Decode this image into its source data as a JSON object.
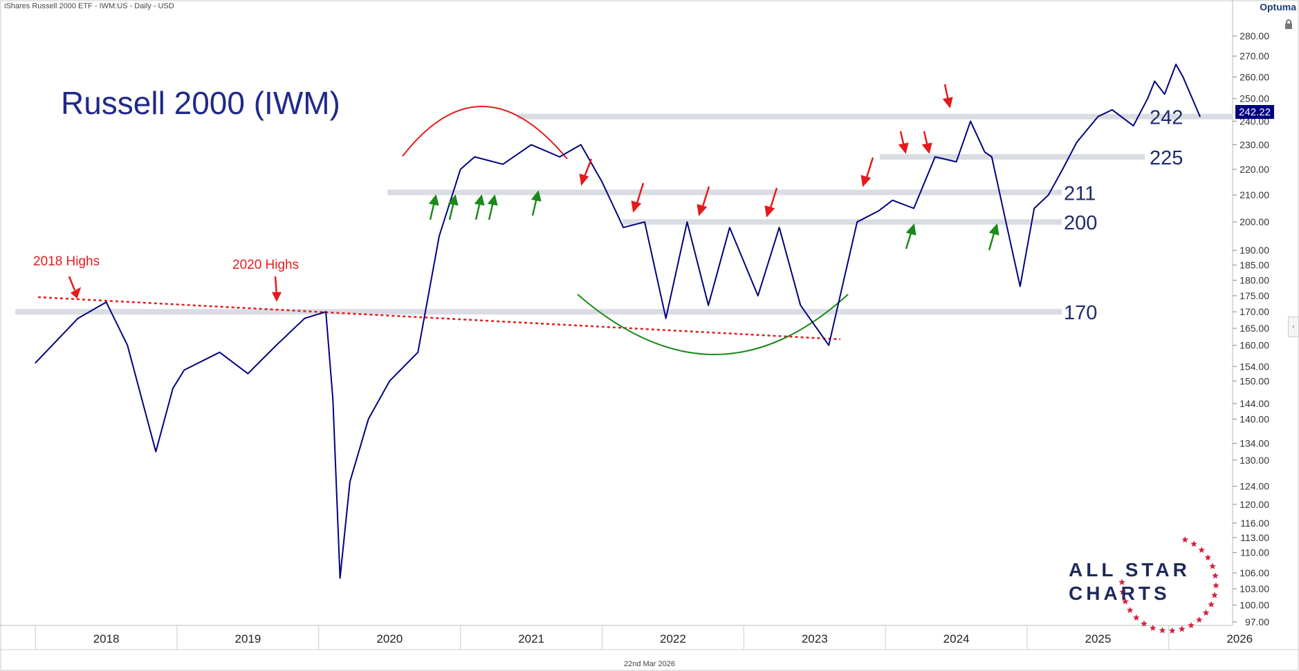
{
  "header": {
    "instrument": "iShares Russell 2000 ETF - IWM:US - Daily - USD",
    "brand": "Optuma"
  },
  "title": "Russell 2000 (IWM)",
  "footer": {
    "date": "22nd Mar 2026"
  },
  "branding": {
    "line1": "ALL STAR",
    "line2": "CHARTS"
  },
  "colors": {
    "price": "#000080",
    "red": "#e41a1c",
    "green": "#1a8a1a",
    "grid": "#d9dde3",
    "label": "#1f2a6e"
  },
  "icons": [
    "lock-icon",
    "collapse-panel-icon"
  ],
  "chart_data": {
    "type": "line",
    "y_scale": "log",
    "ylim": [
      97,
      290
    ],
    "y_ticks": [
      "280.00",
      "270.00",
      "260.00",
      "250.00",
      "240.00",
      "230.00",
      "220.00",
      "210.00",
      "200.00",
      "190.00",
      "185.00",
      "180.00",
      "175.00",
      "170.00",
      "165.00",
      "160.00",
      "154.00",
      "150.00",
      "144.00",
      "140.00",
      "134.00",
      "130.00",
      "124.00",
      "120.00",
      "116.00",
      "113.00",
      "110.00",
      "106.00",
      "103.00",
      "100.00",
      "97.00"
    ],
    "x_ticks": [
      "2018",
      "2019",
      "2020",
      "2021",
      "2022",
      "2023",
      "2024",
      "2025",
      "2026"
    ],
    "last_price_label": "242.22",
    "series": [
      {
        "x": [
          2018.0,
          2018.3,
          2018.5,
          2018.65,
          2018.85,
          2018.97,
          2019.05,
          2019.3,
          2019.5,
          2019.7,
          2019.9,
          2020.05,
          2020.1,
          2020.15,
          2020.22,
          2020.35,
          2020.5,
          2020.7,
          2020.85,
          2021.0,
          2021.1,
          2021.3,
          2021.5,
          2021.7,
          2021.85,
          2022.0,
          2022.15,
          2022.3,
          2022.45,
          2022.6,
          2022.75,
          2022.9,
          2023.1,
          2023.25,
          2023.4,
          2023.6,
          2023.8,
          2023.95,
          2024.05,
          2024.2,
          2024.35,
          2024.5,
          2024.6,
          2024.7,
          2024.75,
          2024.85,
          2024.95,
          2025.05,
          2025.15,
          2025.25,
          2025.35,
          2025.5,
          2025.6,
          2025.75,
          2025.85,
          2025.9,
          2025.97,
          2026.05,
          2026.1,
          2026.22
        ],
        "values": [
          155,
          168,
          173,
          160,
          132,
          148,
          153,
          158,
          152,
          160,
          168,
          170,
          145,
          105,
          125,
          140,
          150,
          158,
          195,
          220,
          225,
          222,
          230,
          225,
          230,
          215,
          198,
          200,
          168,
          200,
          172,
          198,
          175,
          198,
          172,
          160,
          200,
          204,
          208,
          205,
          225,
          223,
          240,
          227,
          225,
          200,
          178,
          205,
          210,
          220,
          231,
          242,
          245,
          238,
          250,
          258,
          252,
          266,
          260,
          242
        ]
      }
    ],
    "levels": [
      {
        "label": "242",
        "value": 242
      },
      {
        "label": "225",
        "value": 225
      },
      {
        "label": "211",
        "value": 211
      },
      {
        "label": "200",
        "value": 200
      },
      {
        "label": "170",
        "value": 170
      }
    ],
    "annotations": [
      {
        "text": "2018 Highs"
      },
      {
        "text": "2020 Highs"
      }
    ]
  }
}
